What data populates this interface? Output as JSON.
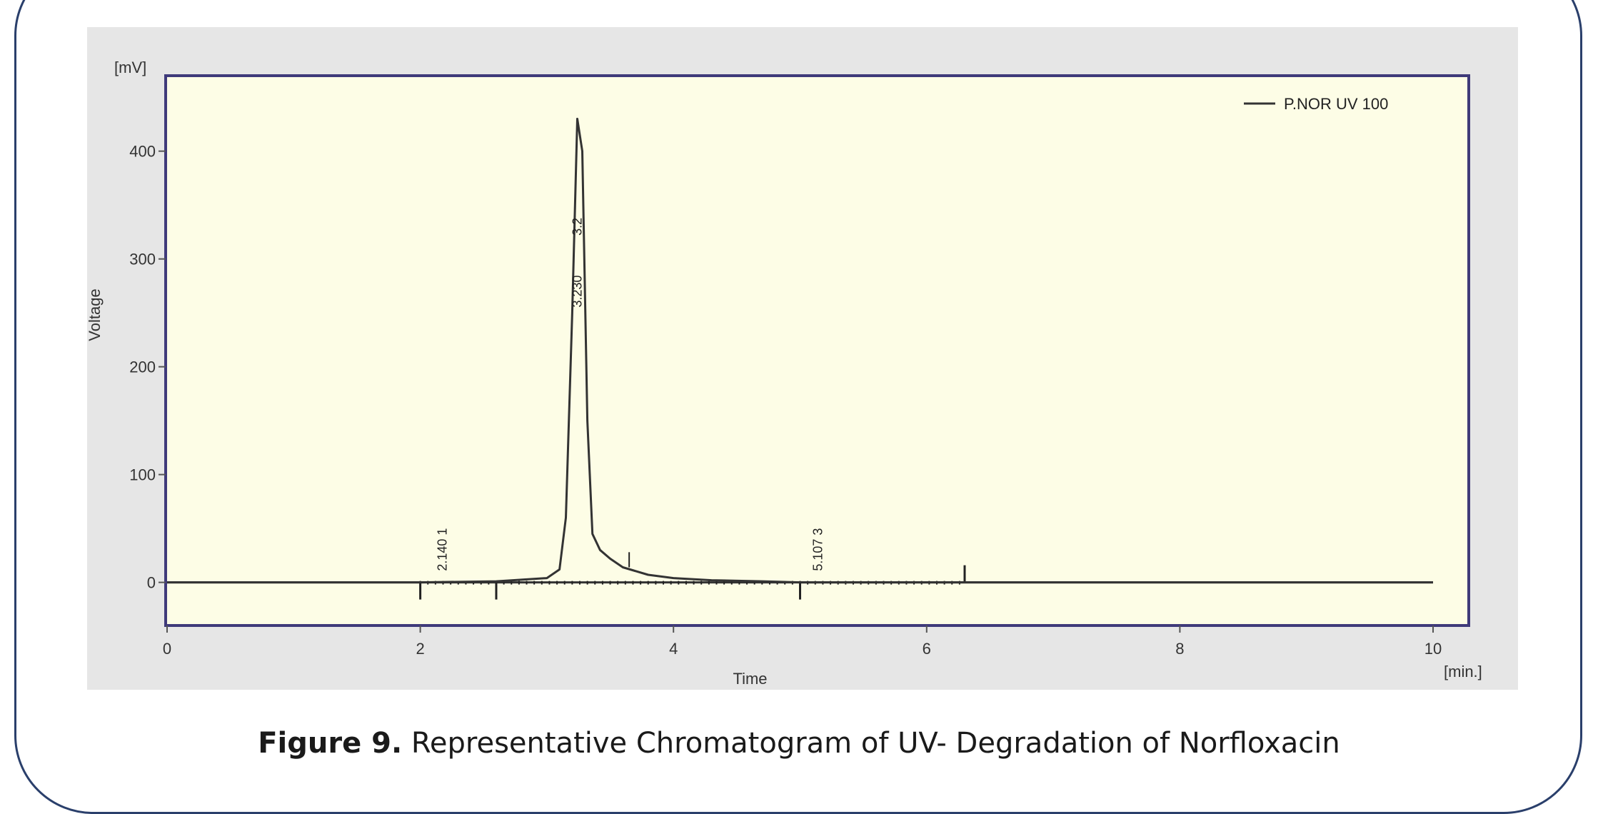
{
  "caption": {
    "label": "Figure 9.",
    "text": " Representative Chromatogram of UV- Degradation of Norfloxacin"
  },
  "chart_data": {
    "type": "line",
    "xlabel": "Time",
    "ylabel": "Voltage",
    "x_unit": "[min.]",
    "y_unit": "[mV]",
    "xlim": [
      0,
      10
    ],
    "ylim": [
      -40,
      470
    ],
    "x_ticks": [
      0,
      2,
      4,
      6,
      8,
      10
    ],
    "y_ticks": [
      0,
      100,
      200,
      300,
      400
    ],
    "grid": false,
    "legend_position": "top-right",
    "colors": {
      "plot_background": "#fdfde6",
      "frame": "#3f3a7a",
      "panel": "#e6e6e6",
      "trace": "#333333",
      "border": "#2a3f6b"
    },
    "series": [
      {
        "name": "P.NOR UV 100",
        "x": [
          0,
          2.0,
          2.6,
          3.0,
          3.1,
          3.15,
          3.2,
          3.24,
          3.28,
          3.32,
          3.36,
          3.42,
          3.5,
          3.6,
          3.8,
          4.0,
          4.3,
          4.7,
          5.0,
          5.5,
          6.3,
          8,
          10
        ],
        "y": [
          0,
          0,
          1,
          4,
          12,
          60,
          250,
          430,
          400,
          150,
          45,
          30,
          22,
          14,
          7,
          4,
          2,
          1,
          0,
          0,
          0,
          0,
          0
        ]
      }
    ],
    "peaks": [
      {
        "time": 2.14,
        "label": "2.140",
        "number": "1"
      },
      {
        "time": 5.107,
        "label": "5.107",
        "number": "3"
      }
    ],
    "main_peak_labels": [
      "3.2",
      "3.230"
    ],
    "baseline_markers": [
      2.0,
      2.6,
      5.0,
      6.3
    ],
    "small_marks": [
      3.65
    ]
  }
}
